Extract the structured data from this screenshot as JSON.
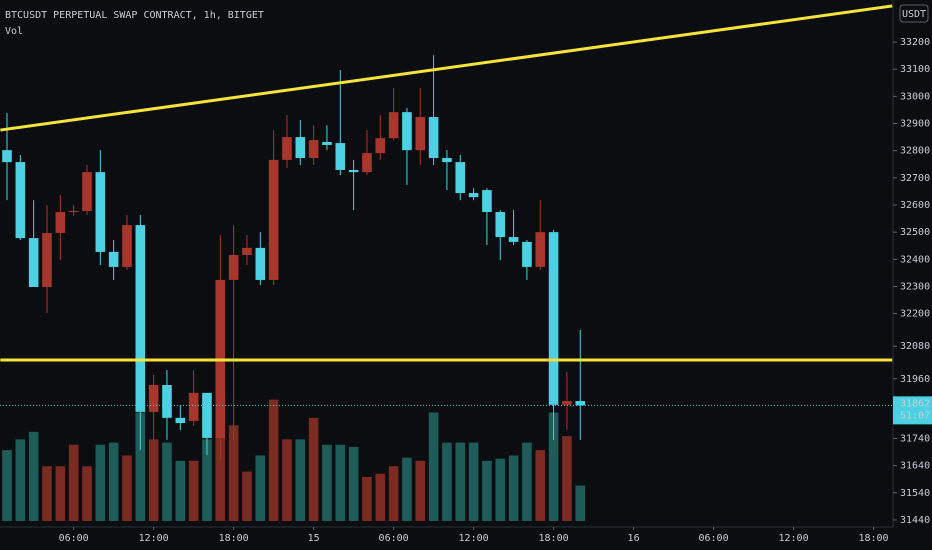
{
  "chart_data": {
    "type": "candlestick",
    "title": "BTCUSDT PERPETUAL SWAP CONTRACT, 1h, BITGET",
    "subtitle": "Vol",
    "currency": "USDT",
    "up_color": "#a8362c",
    "down_color": "#4dd0e1",
    "volume_up_color": "#7b2b22",
    "volume_down_color": "#1d5c58",
    "trendline_color": "#f5e33b",
    "x": [
      1,
      2,
      3,
      4,
      5,
      6,
      7,
      8,
      9,
      10,
      11,
      12,
      13,
      14,
      15,
      16,
      17,
      18,
      19,
      20,
      21,
      22,
      23,
      24,
      25,
      26,
      27,
      28,
      29,
      30,
      31,
      32,
      33,
      34,
      35,
      36,
      37,
      38,
      39,
      40,
      41,
      42,
      43,
      44
    ],
    "open": [
      32802,
      32758,
      32478,
      32298,
      32497,
      32574,
      32578,
      32721,
      32427,
      32372,
      32526,
      31838,
      31937,
      31816,
      31805,
      31908,
      31742,
      32324,
      32416,
      32442,
      32324,
      32766,
      32850,
      32773,
      32832,
      32828,
      32729,
      32721,
      32791,
      32846,
      32942,
      32802,
      32924,
      32773,
      32758,
      32644,
      32655,
      32574,
      32482,
      32464,
      32372,
      32500,
      31864,
      31878
    ],
    "high": [
      32939,
      32784,
      32618,
      32600,
      32637,
      32600,
      32747,
      32802,
      32471,
      32563,
      32563,
      31974,
      31992,
      31864,
      31992,
      31908,
      32489,
      32526,
      32489,
      32500,
      32876,
      32931,
      32913,
      32894,
      32894,
      33097,
      32766,
      32876,
      32931,
      33031,
      32957,
      33031,
      33152,
      32802,
      32784,
      32662,
      32662,
      32581,
      32581,
      32471,
      32618,
      32508,
      31985,
      32140
    ],
    "low": [
      32618,
      32471,
      32298,
      32202,
      32397,
      32560,
      32563,
      32379,
      32324,
      32361,
      31698,
      31735,
      31735,
      31771,
      31787,
      31679,
      31661,
      31735,
      32379,
      32305,
      32305,
      32736,
      32747,
      32747,
      32802,
      32710,
      32581,
      32710,
      32766,
      32839,
      32674,
      32747,
      32747,
      32655,
      32618,
      32618,
      32453,
      32397,
      32453,
      32324,
      32361,
      31735,
      31772,
      31735
    ],
    "close": [
      32758,
      32478,
      32298,
      32497,
      32574,
      32578,
      32721,
      32427,
      32372,
      32526,
      31838,
      31937,
      31816,
      31797,
      31908,
      31742,
      32324,
      32416,
      32442,
      32324,
      32766,
      32850,
      32773,
      32839,
      32821,
      32729,
      32721,
      32791,
      32846,
      32942,
      32802,
      32924,
      32773,
      32758,
      32644,
      32629,
      32574,
      32482,
      32464,
      32372,
      32500,
      31864,
      31878,
      31862
    ],
    "volume": [
      66,
      76,
      83,
      51,
      51,
      71,
      51,
      71,
      73,
      61,
      101,
      76,
      73,
      56,
      56,
      76,
      121,
      89,
      46,
      61,
      113,
      76,
      76,
      96,
      71,
      71,
      69,
      41,
      44,
      51,
      59,
      56,
      101,
      73,
      73,
      73,
      56,
      58,
      61,
      73,
      66,
      101,
      79,
      33
    ],
    "trendlines": [
      {
        "x": [
          0.5,
          67.4
        ],
        "y": [
          32876,
          33333
        ]
      },
      {
        "x": [
          0.5,
          67.4
        ],
        "y": [
          32029,
          32029
        ]
      }
    ],
    "last_price": {
      "value": 31862,
      "label": "31862.0"
    },
    "countdown": "51:07",
    "xlim": [
      0.475,
      67.46
    ],
    "ylim": [
      31414,
      33355
    ],
    "xticks": [
      {
        "value": 6,
        "label": "06:00"
      },
      {
        "value": 12,
        "label": "12:00"
      },
      {
        "value": 18,
        "label": "18:00"
      },
      {
        "value": 24,
        "label": "15"
      },
      {
        "value": 30,
        "label": "06:00"
      },
      {
        "value": 36,
        "label": "12:00"
      },
      {
        "value": 42,
        "label": "18:00"
      },
      {
        "value": 48,
        "label": "16"
      },
      {
        "value": 54,
        "label": "06:00"
      },
      {
        "value": 60,
        "label": "12:00"
      },
      {
        "value": 66,
        "label": "18:00"
      }
    ],
    "yticks": [
      {
        "value": 33200,
        "label": "33200.0"
      },
      {
        "value": 33100,
        "label": "33100.0"
      },
      {
        "value": 33000,
        "label": "33000.0"
      },
      {
        "value": 32900,
        "label": "32900.0"
      },
      {
        "value": 32800,
        "label": "32800.0"
      },
      {
        "value": 32700,
        "label": "32700.0"
      },
      {
        "value": 32600,
        "label": "32600.0"
      },
      {
        "value": 32500,
        "label": "32500.0"
      },
      {
        "value": 32400,
        "label": "32400.0"
      },
      {
        "value": 32300,
        "label": "32300.0"
      },
      {
        "value": 32200,
        "label": "32200.0"
      },
      {
        "value": 32080,
        "label": "32080.0"
      },
      {
        "value": 31960,
        "label": "31960.0"
      },
      {
        "value": 31740,
        "label": "31740.0"
      },
      {
        "value": 31640,
        "label": "31640.0"
      },
      {
        "value": 31540,
        "label": "31540.0"
      },
      {
        "value": 31440,
        "label": "31440.0"
      }
    ]
  }
}
